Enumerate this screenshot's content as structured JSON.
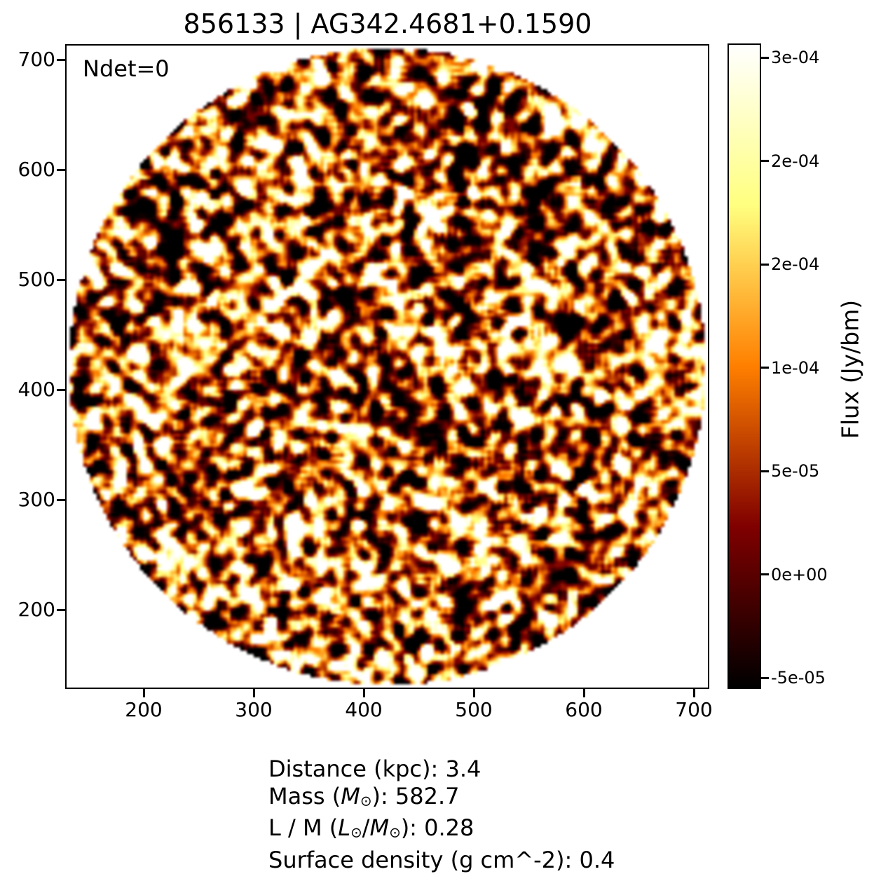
{
  "figure": {
    "title": "856133 | AG342.4681+0.1590",
    "annotation": "Ndet=0"
  },
  "chart_data": {
    "type": "heatmap",
    "title": "856133 | AG342.4681+0.1590",
    "annotation": "Ndet=0",
    "description": "Circular map cutout filled with spatially-correlated noise (black / dark-red / orange / yellow-white blobs, afmhot-style colormap) on a white background; no detected sources (Ndet=0).",
    "x_ticks": [
      200,
      300,
      400,
      500,
      600,
      700
    ],
    "y_ticks": [
      700,
      600,
      500,
      400,
      300,
      200
    ],
    "x_range": [
      130,
      714
    ],
    "y_range": [
      118,
      706
    ],
    "grid": false,
    "legend": null,
    "colorbar": {
      "label": "Flux (Jy/bm)",
      "tick_labels": [
        "3e-04",
        "2e-04",
        "2e-04",
        "1e-04",
        "5e-05",
        "0e+00",
        "-5e-05"
      ],
      "colormap": "afmhot",
      "vmin_approx": -5.5e-05,
      "vmax_approx": 0.00031,
      "position": "right"
    }
  },
  "info": {
    "line1": {
      "pre": "Distance (kpc): ",
      "value": "3.4"
    },
    "line2": {
      "pre": "Mass (",
      "sym": "M",
      "sun": "⊙",
      "post": "): ",
      "value": "582.7"
    },
    "line3": {
      "pre": "L / M (",
      "sym1": "L",
      "sun1": "⊙",
      "slash": "/",
      "sym2": "M",
      "sun2": "⊙",
      "post": "): ",
      "value": "0.28"
    },
    "line4": {
      "pre": "Surface density (g cm^-2): ",
      "value": "0.4"
    }
  }
}
